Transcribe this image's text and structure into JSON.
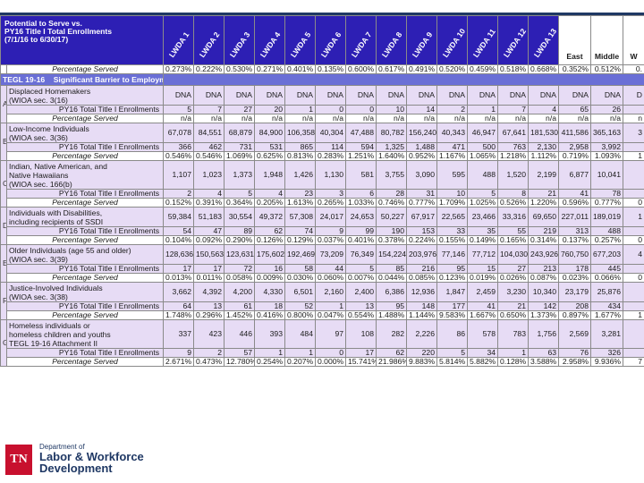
{
  "header": {
    "title_lines": [
      "Potential to Serve vs.",
      "PY16 Title I Total Enrollments",
      "(7/1/16 to 6/30/17)"
    ],
    "columns": [
      "LWDA 1",
      "LWDA 2",
      "LWDA 3",
      "LWDA 4",
      "LWDA 5",
      "LWDA 6",
      "LWDA 7",
      "LWDA 8",
      "LWDA 9",
      "LWDA 10",
      "LWDA 11",
      "LWDA 12",
      "LWDA 13"
    ],
    "regions": [
      "East",
      "Middle"
    ],
    "extra": "W"
  },
  "pct_row": {
    "label": "Percentage Served",
    "values": [
      "0.273%",
      "0.222%",
      "0.530%",
      "0.271%",
      "0.401%",
      "0.135%",
      "0.600%",
      "0.617%",
      "0.491%",
      "0.520%",
      "0.459%",
      "0.518%",
      "0.668%",
      "0.352%",
      "0.512%",
      "0."
    ]
  },
  "section": {
    "code": "TEGL 19-16",
    "title": "Significant Barrier to Employment"
  },
  "groups": [
    {
      "letter": "A",
      "category": [
        "Displaced Homemakers",
        "(WIOA sec. 3(16)"
      ],
      "pot": [
        "DNA",
        "DNA",
        "DNA",
        "DNA",
        "DNA",
        "DNA",
        "DNA",
        "DNA",
        "DNA",
        "DNA",
        "DNA",
        "DNA",
        "DNA",
        "DNA",
        "DNA",
        "D"
      ],
      "enr": [
        "5",
        "7",
        "27",
        "20",
        "1",
        "0",
        "0",
        "10",
        "14",
        "2",
        "1",
        "7",
        "4",
        "65",
        "26",
        ""
      ],
      "pct": [
        "n/a",
        "n/a",
        "n/a",
        "n/a",
        "n/a",
        "n/a",
        "n/a",
        "n/a",
        "n/a",
        "n/a",
        "n/a",
        "n/a",
        "n/a",
        "n/a",
        "n/a",
        "n"
      ]
    },
    {
      "letter": "B",
      "category": [
        "Low-Income Individuals",
        "(WIOA sec. 3(36)"
      ],
      "pot": [
        "67,078",
        "84,551",
        "68,879",
        "84,900",
        "106,358",
        "40,304",
        "47,488",
        "80,782",
        "156,240",
        "40,343",
        "46,947",
        "67,641",
        "181,530",
        "411,586",
        "365,163",
        "3"
      ],
      "enr": [
        "366",
        "462",
        "731",
        "531",
        "865",
        "114",
        "594",
        "1,325",
        "1,488",
        "471",
        "500",
        "763",
        "2,130",
        "2,958",
        "3,992",
        ""
      ],
      "pct": [
        "0.546%",
        "0.546%",
        "1.069%",
        "0.625%",
        "0.813%",
        "0.283%",
        "1.251%",
        "1.640%",
        "0.952%",
        "1.167%",
        "1.065%",
        "1.218%",
        "1.112%",
        "0.719%",
        "1.093%",
        "1"
      ]
    },
    {
      "letter": "C",
      "category": [
        "Indian, Native American, and",
        "Native Hawaiians",
        "(WIOA sec. 166(b)"
      ],
      "pot": [
        "1,107",
        "1,023",
        "1,373",
        "1,948",
        "1,426",
        "1,130",
        "581",
        "3,755",
        "3,090",
        "595",
        "488",
        "1,520",
        "2,199",
        "6,877",
        "10,041",
        ""
      ],
      "enr": [
        "2",
        "4",
        "5",
        "4",
        "23",
        "3",
        "6",
        "28",
        "31",
        "10",
        "5",
        "8",
        "21",
        "41",
        "78",
        ""
      ],
      "pct": [
        "0.152%",
        "0.391%",
        "0.364%",
        "0.205%",
        "1.613%",
        "0.265%",
        "1.033%",
        "0.746%",
        "0.777%",
        "1.709%",
        "1.025%",
        "0.526%",
        "1.220%",
        "0.596%",
        "0.777%",
        "0"
      ]
    },
    {
      "letter": "D",
      "category": [
        "Individuals with Disabilities,",
        "including recipients of SSDI"
      ],
      "pot": [
        "59,384",
        "51,183",
        "30,554",
        "49,372",
        "57,308",
        "24,017",
        "24,653",
        "50,227",
        "67,917",
        "22,565",
        "23,466",
        "33,316",
        "69,650",
        "227,011",
        "189,019",
        "1"
      ],
      "enr": [
        "54",
        "47",
        "89",
        "62",
        "74",
        "9",
        "99",
        "190",
        "153",
        "33",
        "35",
        "55",
        "219",
        "313",
        "488",
        ""
      ],
      "pct": [
        "0.104%",
        "0.092%",
        "0.290%",
        "0.126%",
        "0.129%",
        "0.037%",
        "0.401%",
        "0.378%",
        "0.224%",
        "0.155%",
        "0.149%",
        "0.165%",
        "0.314%",
        "0.137%",
        "0.257%",
        "0"
      ]
    },
    {
      "letter": "E",
      "category": [
        "Older Individuals (age 55 and older)",
        "(WIOA sec. 3(39)"
      ],
      "pot": [
        "128,636",
        "150,563",
        "123,631",
        "175,602",
        "192,469",
        "73,209",
        "76,349",
        "154,224",
        "203,976",
        "77,146",
        "77,712",
        "104,030",
        "243,926",
        "760,750",
        "677,203",
        "4"
      ],
      "enr": [
        "17",
        "17",
        "72",
        "16",
        "58",
        "44",
        "5",
        "85",
        "216",
        "95",
        "15",
        "27",
        "213",
        "178",
        "445",
        ""
      ],
      "pct": [
        "0.013%",
        "0.011%",
        "0.058%",
        "0.009%",
        "0.030%",
        "0.060%",
        "0.007%",
        "0.044%",
        "0.085%",
        "0.123%",
        "0.019%",
        "0.026%",
        "0.087%",
        "0.023%",
        "0.066%",
        "0"
      ]
    },
    {
      "letter": "F",
      "category": [
        "Justice-Involved Individuals",
        "(WIOA sec. 3(38)"
      ],
      "pot": [
        "3,662",
        "4,392",
        "4,200",
        "4,330",
        "6,501",
        "2,160",
        "2,400",
        "6,386",
        "12,936",
        "1,847",
        "2,459",
        "3,230",
        "10,340",
        "23,179",
        "25,876",
        ""
      ],
      "enr": [
        "64",
        "13",
        "61",
        "18",
        "52",
        "1",
        "13",
        "95",
        "148",
        "177",
        "41",
        "21",
        "142",
        "208",
        "434",
        ""
      ],
      "pct": [
        "1.748%",
        "0.296%",
        "1.452%",
        "0.416%",
        "0.800%",
        "0.047%",
        "0.554%",
        "1.488%",
        "1.144%",
        "9.583%",
        "1.667%",
        "0.650%",
        "1.373%",
        "0.897%",
        "1.677%",
        "1"
      ]
    },
    {
      "letter": "G",
      "category": [
        "Homeless individuals or",
        "homeless children and youths",
        "TEGL 19-16 Attachment II"
      ],
      "pot": [
        "337",
        "423",
        "446",
        "393",
        "484",
        "97",
        "108",
        "282",
        "2,226",
        "86",
        "578",
        "783",
        "1,756",
        "2,569",
        "3,281",
        ""
      ],
      "enr": [
        "9",
        "2",
        "57",
        "1",
        "1",
        "0",
        "17",
        "62",
        "220",
        "5",
        "34",
        "1",
        "63",
        "76",
        "326",
        ""
      ],
      "pct": [
        "2.671%",
        "0.473%",
        "12.780%",
        "0.254%",
        "0.207%",
        "0.000%",
        "15.741%",
        "21.986%",
        "9.883%",
        "5.814%",
        "5.882%",
        "0.128%",
        "3.588%",
        "2.958%",
        "9.936%",
        "7"
      ]
    }
  ],
  "row_labels": {
    "enr": "PY16 Total Title I Enrollments",
    "pct": "Percentage Served"
  },
  "footer": {
    "logo_text": "TN",
    "dept_line1": "Department of",
    "dept_line2": "Labor & Workforce",
    "dept_line3": "Development"
  }
}
